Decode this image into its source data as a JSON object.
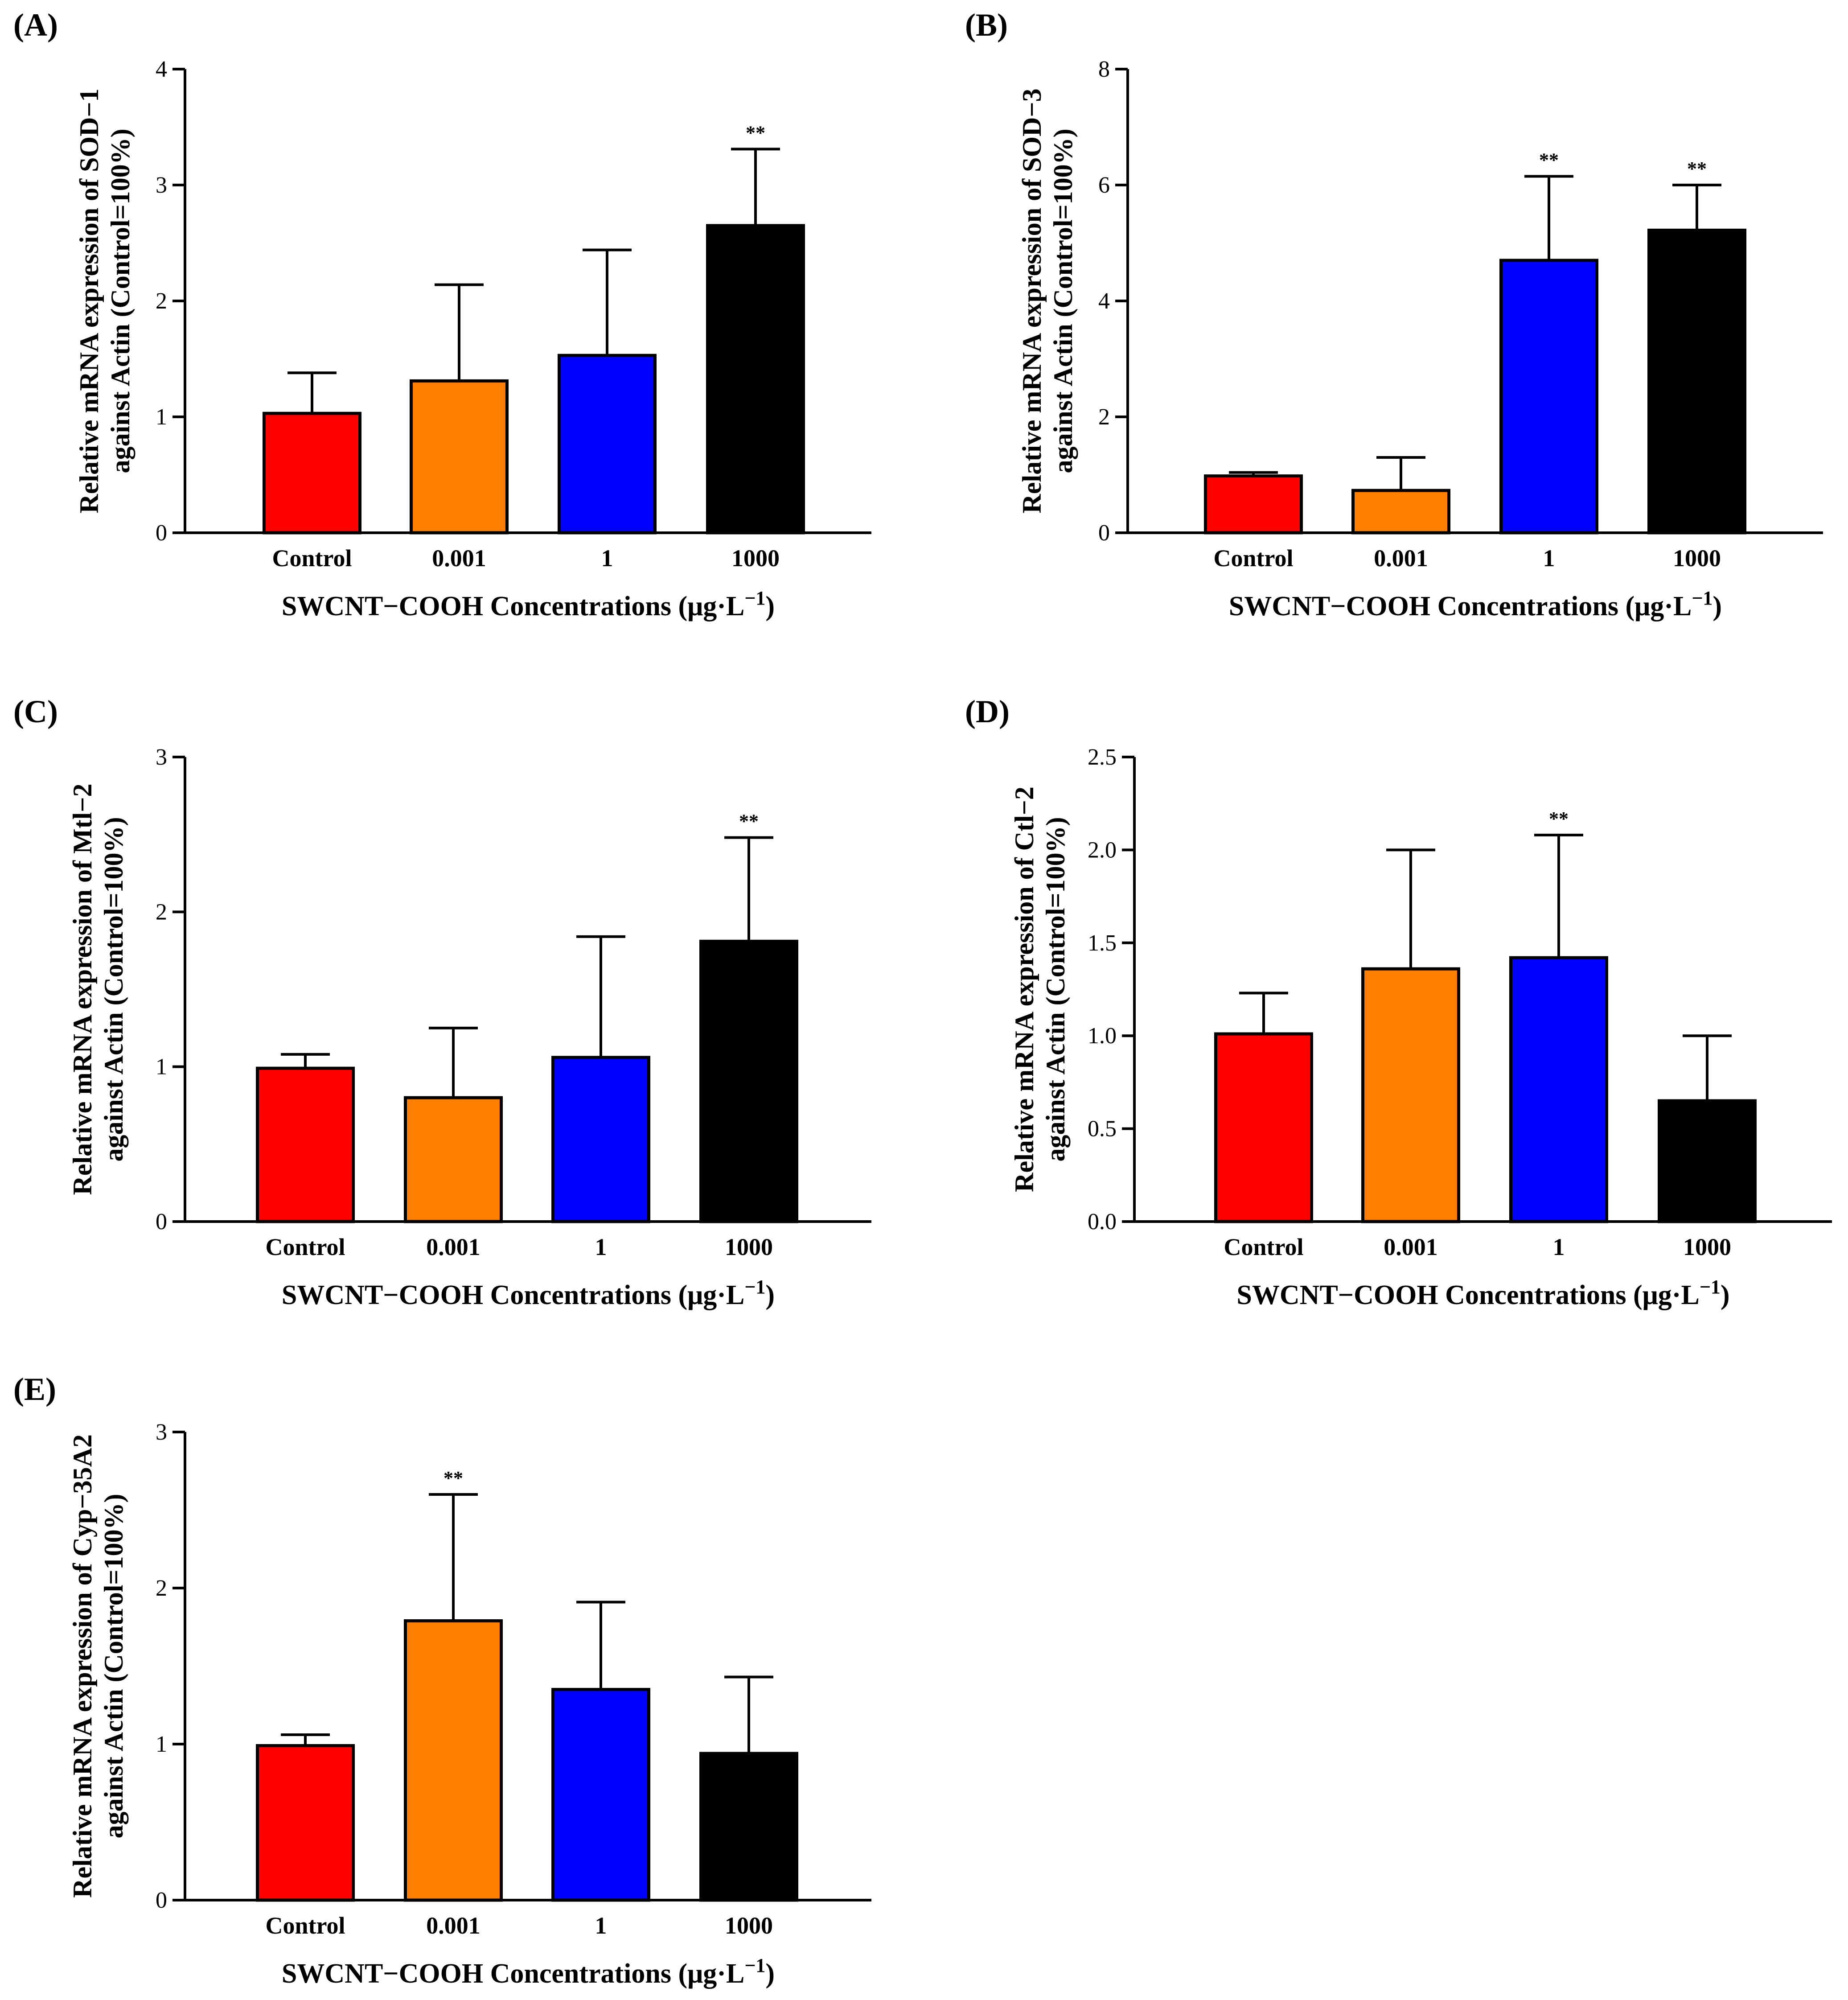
{
  "figure": {
    "panels": [
      {
        "label": "(A)",
        "ylabel_line1": "Relative mRNA expression of SOD−1",
        "ylabel_line2": "against Actin (Control=100%)"
      },
      {
        "label": "(B)",
        "ylabel_line1": "Relative mRNA expression of SOD−3",
        "ylabel_line2": "against Actin (Control=100%)"
      },
      {
        "label": "(C)",
        "ylabel_line1": "Relative mRNA expression of Mtl−2",
        "ylabel_line2": "against Actin (Control=100%)"
      },
      {
        "label": "(D)",
        "ylabel_line1": "Relative mRNA expression of Ctl−2",
        "ylabel_line2": "against Actin (Control=100%)"
      },
      {
        "label": "(E)",
        "ylabel_line1": "Relative mRNA expression of Cyp−35A2",
        "ylabel_line2": "against Actin (Control=100%)"
      }
    ]
  },
  "colors": {
    "control": "#ff0000",
    "c0001": "#ff8000",
    "c1": "#0000ff",
    "c1000": "#000000"
  },
  "chart_data": [
    {
      "type": "bar",
      "title": "(A)",
      "categories": [
        "Control",
        "0.001",
        "1",
        "1000"
      ],
      "values": [
        1.03,
        1.31,
        1.53,
        2.65
      ],
      "errors": [
        0.35,
        0.83,
        0.91,
        0.66
      ],
      "significance": [
        "",
        "",
        "",
        "**"
      ],
      "xlabel_main": "SWCNT−COOH Concentrations (μg·L",
      "xlabel_sup": "−1",
      "xlabel_end": ")",
      "ylabel": "Relative mRNA expression of SOD−1 against Actin (Control=100%)",
      "ylim": [
        0,
        4
      ],
      "yticks": [
        0,
        1,
        2,
        3,
        4
      ],
      "ytick_labels": [
        "0",
        "1",
        "2",
        "3",
        "4"
      ]
    },
    {
      "type": "bar",
      "title": "(B)",
      "categories": [
        "Control",
        "0.001",
        "1",
        "1000"
      ],
      "values": [
        0.98,
        0.73,
        4.7,
        5.22
      ],
      "errors": [
        0.06,
        0.57,
        1.45,
        0.78
      ],
      "significance": [
        "",
        "",
        "**",
        "**"
      ],
      "xlabel_main": "SWCNT−COOH Concentrations (μg·L",
      "xlabel_sup": "−1",
      "xlabel_end": ")",
      "ylabel": "Relative mRNA expression of SOD−3 against Actin (Control=100%)",
      "ylim": [
        0,
        8
      ],
      "yticks": [
        0,
        2,
        4,
        6,
        8
      ],
      "ytick_labels": [
        "0",
        "2",
        "4",
        "6",
        "8"
      ]
    },
    {
      "type": "bar",
      "title": "(C)",
      "categories": [
        "Control",
        "0.001",
        "1",
        "1000"
      ],
      "values": [
        0.99,
        0.8,
        1.06,
        1.81
      ],
      "errors": [
        0.09,
        0.45,
        0.78,
        0.67
      ],
      "significance": [
        "",
        "",
        "",
        "**"
      ],
      "xlabel_main": "SWCNT−COOH Concentrations (μg·L",
      "xlabel_sup": "−1",
      "xlabel_end": ")",
      "ylabel": "Relative mRNA expression of Mtl−2 against Actin (Control=100%)",
      "ylim": [
        0,
        3
      ],
      "yticks": [
        0,
        1,
        2,
        3
      ],
      "ytick_labels": [
        "0",
        "1",
        "2",
        "3"
      ]
    },
    {
      "type": "bar",
      "title": "(D)",
      "categories": [
        "Control",
        "0.001",
        "1",
        "1000"
      ],
      "values": [
        1.01,
        1.36,
        1.42,
        0.65
      ],
      "errors": [
        0.22,
        0.64,
        0.66,
        0.35
      ],
      "significance": [
        "",
        "",
        "**",
        ""
      ],
      "xlabel_main": "SWCNT−COOH Concentrations (μg·L",
      "xlabel_sup": "−1",
      "xlabel_end": ")",
      "ylabel": "Relative mRNA expression of Ctl−2 against Actin (Control=100%)",
      "ylim": [
        0,
        2.5
      ],
      "yticks": [
        0,
        0.5,
        1.0,
        1.5,
        2.0,
        2.5
      ],
      "ytick_labels": [
        "0.0",
        "0.5",
        "1.0",
        "1.5",
        "2.0",
        "2.5"
      ]
    },
    {
      "type": "bar",
      "title": "(E)",
      "categories": [
        "Control",
        "0.001",
        "1",
        "1000"
      ],
      "values": [
        0.99,
        1.79,
        1.35,
        0.94
      ],
      "errors": [
        0.07,
        0.81,
        0.56,
        0.49
      ],
      "significance": [
        "",
        "**",
        "",
        ""
      ],
      "xlabel_main": "SWCNT−COOH Concentrations (μg·L",
      "xlabel_sup": "−1",
      "xlabel_end": ")",
      "ylabel": "Relative mRNA expression of Cyp−35A2 against Actin (Control=100%)",
      "ylim": [
        0,
        3
      ],
      "yticks": [
        0,
        1,
        2,
        3
      ],
      "ytick_labels": [
        "0",
        "1",
        "2",
        "3"
      ]
    }
  ]
}
